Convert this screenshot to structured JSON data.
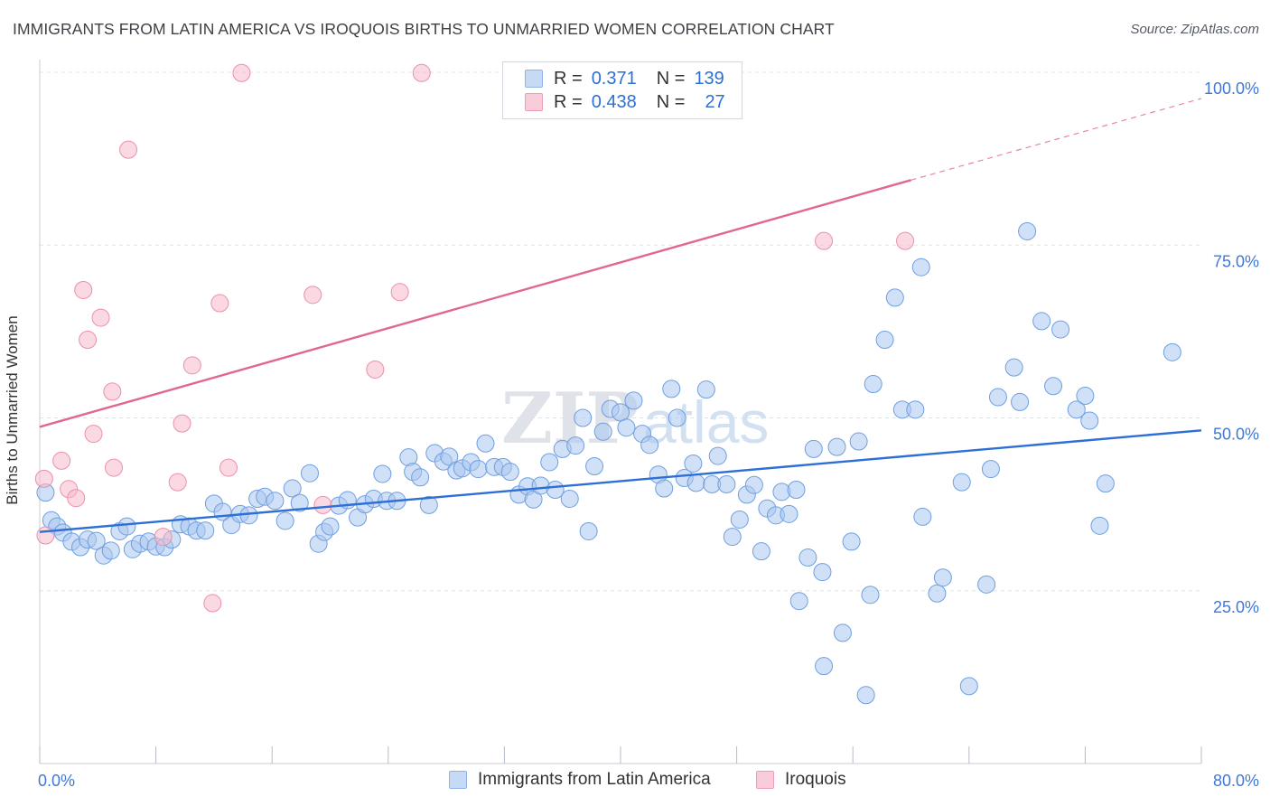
{
  "title": "IMMIGRANTS FROM LATIN AMERICA VS IROQUOIS BIRTHS TO UNMARRIED WOMEN CORRELATION CHART",
  "source": "Source: ZipAtlas.com",
  "watermark": "ZIPatlas",
  "legend": {
    "r_label": "R =",
    "n_label": "N =",
    "rows": [
      {
        "r": "0.371",
        "n": "139",
        "color": "#a9c6f0"
      },
      {
        "r": "0.438",
        "n": "27",
        "color": "#f6b9cb"
      }
    ]
  },
  "chart_data": {
    "type": "scatter",
    "title": "IMMIGRANTS FROM LATIN AMERICA VS IROQUOIS BIRTHS TO UNMARRIED WOMEN CORRELATION CHART",
    "xlabel": "",
    "ylabel": "Births to Unmarried Women",
    "xlim": [
      0,
      80
    ],
    "ylim": [
      0,
      100
    ],
    "x_tick_labels": [
      "0.0%",
      "80.0%"
    ],
    "y_tick_labels": [
      "25.0%",
      "50.0%",
      "75.0%",
      "100.0%"
    ],
    "y_ticks": [
      25,
      50,
      75,
      100
    ],
    "grid": true,
    "legend_position": "top-center",
    "series": [
      {
        "name": "Immigrants from Latin America",
        "color": "#a9c6f0",
        "stroke": "#6f9fe0",
        "trend": {
          "start": [
            0,
            33.5
          ],
          "end": [
            80,
            48.2
          ],
          "color": "#2d6fd6"
        },
        "points": [
          [
            0.4,
            39.2
          ],
          [
            0.8,
            35.2
          ],
          [
            1.2,
            34.3
          ],
          [
            1.6,
            33.4
          ],
          [
            2.2,
            32.1
          ],
          [
            2.8,
            31.3
          ],
          [
            3.3,
            32.4
          ],
          [
            3.9,
            32.2
          ],
          [
            4.4,
            30.1
          ],
          [
            4.9,
            30.8
          ],
          [
            5.5,
            33.6
          ],
          [
            6.0,
            34.3
          ],
          [
            6.4,
            31.0
          ],
          [
            6.9,
            31.8
          ],
          [
            7.5,
            32.1
          ],
          [
            8.0,
            31.4
          ],
          [
            8.6,
            31.3
          ],
          [
            9.1,
            32.4
          ],
          [
            9.7,
            34.6
          ],
          [
            10.3,
            34.3
          ],
          [
            10.8,
            33.7
          ],
          [
            11.4,
            33.7
          ],
          [
            12.0,
            37.6
          ],
          [
            12.6,
            36.4
          ],
          [
            13.2,
            34.5
          ],
          [
            13.8,
            36.1
          ],
          [
            14.4,
            35.9
          ],
          [
            15.0,
            38.3
          ],
          [
            15.5,
            38.6
          ],
          [
            16.2,
            38.0
          ],
          [
            16.9,
            35.1
          ],
          [
            17.4,
            39.8
          ],
          [
            17.9,
            37.7
          ],
          [
            18.6,
            42.0
          ],
          [
            19.2,
            31.8
          ],
          [
            19.6,
            33.5
          ],
          [
            20.0,
            34.3
          ],
          [
            20.6,
            37.3
          ],
          [
            21.2,
            38.1
          ],
          [
            21.9,
            35.6
          ],
          [
            22.4,
            37.5
          ],
          [
            23.0,
            38.3
          ],
          [
            23.6,
            41.9
          ],
          [
            23.9,
            38.0
          ],
          [
            24.6,
            38.0
          ],
          [
            25.4,
            44.3
          ],
          [
            25.7,
            42.2
          ],
          [
            26.2,
            41.4
          ],
          [
            26.8,
            37.4
          ],
          [
            27.2,
            44.9
          ],
          [
            27.8,
            43.7
          ],
          [
            28.2,
            44.4
          ],
          [
            28.7,
            42.4
          ],
          [
            29.1,
            42.7
          ],
          [
            29.7,
            43.6
          ],
          [
            30.2,
            42.6
          ],
          [
            30.7,
            46.3
          ],
          [
            31.3,
            42.9
          ],
          [
            31.9,
            42.9
          ],
          [
            32.4,
            42.2
          ],
          [
            33.0,
            38.9
          ],
          [
            33.6,
            40.1
          ],
          [
            34.0,
            38.2
          ],
          [
            34.5,
            40.2
          ],
          [
            35.1,
            43.6
          ],
          [
            35.5,
            39.6
          ],
          [
            36.0,
            45.5
          ],
          [
            36.5,
            38.3
          ],
          [
            36.9,
            46.0
          ],
          [
            37.4,
            50.0
          ],
          [
            37.8,
            33.6
          ],
          [
            38.2,
            43.0
          ],
          [
            38.8,
            48.0
          ],
          [
            39.3,
            51.3
          ],
          [
            40.0,
            50.8
          ],
          [
            40.4,
            48.6
          ],
          [
            40.9,
            52.5
          ],
          [
            41.5,
            47.7
          ],
          [
            42.0,
            46.1
          ],
          [
            42.6,
            41.8
          ],
          [
            43.0,
            39.8
          ],
          [
            43.5,
            54.2
          ],
          [
            43.9,
            50.0
          ],
          [
            44.4,
            41.3
          ],
          [
            45.0,
            43.4
          ],
          [
            45.2,
            40.6
          ],
          [
            45.9,
            54.1
          ],
          [
            46.3,
            40.4
          ],
          [
            46.7,
            44.5
          ],
          [
            47.3,
            40.4
          ],
          [
            47.7,
            32.8
          ],
          [
            48.2,
            35.3
          ],
          [
            48.7,
            38.9
          ],
          [
            49.2,
            40.3
          ],
          [
            49.7,
            30.7
          ],
          [
            50.1,
            36.9
          ],
          [
            50.7,
            35.9
          ],
          [
            51.1,
            39.3
          ],
          [
            51.6,
            36.1
          ],
          [
            52.1,
            39.6
          ],
          [
            52.3,
            23.5
          ],
          [
            52.9,
            29.8
          ],
          [
            53.3,
            45.5
          ],
          [
            53.9,
            27.7
          ],
          [
            54.0,
            14.1
          ],
          [
            54.9,
            45.8
          ],
          [
            55.3,
            18.9
          ],
          [
            55.9,
            32.1
          ],
          [
            56.4,
            46.6
          ],
          [
            56.9,
            9.9
          ],
          [
            57.2,
            24.4
          ],
          [
            57.4,
            54.9
          ],
          [
            58.2,
            61.3
          ],
          [
            58.9,
            67.4
          ],
          [
            59.4,
            51.2
          ],
          [
            60.3,
            51.2
          ],
          [
            60.7,
            71.8
          ],
          [
            60.8,
            35.7
          ],
          [
            61.8,
            24.6
          ],
          [
            62.2,
            26.9
          ],
          [
            63.5,
            40.7
          ],
          [
            64.0,
            11.2
          ],
          [
            65.2,
            25.9
          ],
          [
            65.5,
            42.6
          ],
          [
            66.0,
            53.0
          ],
          [
            67.1,
            57.3
          ],
          [
            67.5,
            52.3
          ],
          [
            68.0,
            77.0
          ],
          [
            69.0,
            64.0
          ],
          [
            69.8,
            54.6
          ],
          [
            70.3,
            62.8
          ],
          [
            71.4,
            51.2
          ],
          [
            72.0,
            53.2
          ],
          [
            72.3,
            49.6
          ],
          [
            73.0,
            34.4
          ],
          [
            73.4,
            40.5
          ],
          [
            78.0,
            59.5
          ]
        ]
      },
      {
        "name": "Iroquois",
        "color": "#f6b9cb",
        "stroke": "#ec8faa",
        "trend": {
          "start": [
            0,
            48.7
          ],
          "end": [
            60.0,
            84.4
          ],
          "dashed_end": [
            80,
            96.2
          ],
          "color": "#e06890"
        },
        "points": [
          [
            0.3,
            41.2
          ],
          [
            0.4,
            33.0
          ],
          [
            1.5,
            43.8
          ],
          [
            2.0,
            39.7
          ],
          [
            2.5,
            38.4
          ],
          [
            3.0,
            68.5
          ],
          [
            3.3,
            61.3
          ],
          [
            3.7,
            47.7
          ],
          [
            4.2,
            64.5
          ],
          [
            5.0,
            53.8
          ],
          [
            5.1,
            42.8
          ],
          [
            6.1,
            88.8
          ],
          [
            8.5,
            32.8
          ],
          [
            9.5,
            40.7
          ],
          [
            9.8,
            49.2
          ],
          [
            10.5,
            57.6
          ],
          [
            11.9,
            23.2
          ],
          [
            12.4,
            66.6
          ],
          [
            13.0,
            42.8
          ],
          [
            13.9,
            99.9
          ],
          [
            18.8,
            67.8
          ],
          [
            19.5,
            37.4
          ],
          [
            23.1,
            57.0
          ],
          [
            24.8,
            68.2
          ],
          [
            26.3,
            99.9
          ],
          [
            54.0,
            75.6
          ],
          [
            59.6,
            75.6
          ]
        ]
      }
    ]
  },
  "bottom_legend": [
    {
      "label": "Immigrants from Latin America",
      "color": "#a9c6f0"
    },
    {
      "label": "Iroquois",
      "color": "#f6b9cb"
    }
  ]
}
